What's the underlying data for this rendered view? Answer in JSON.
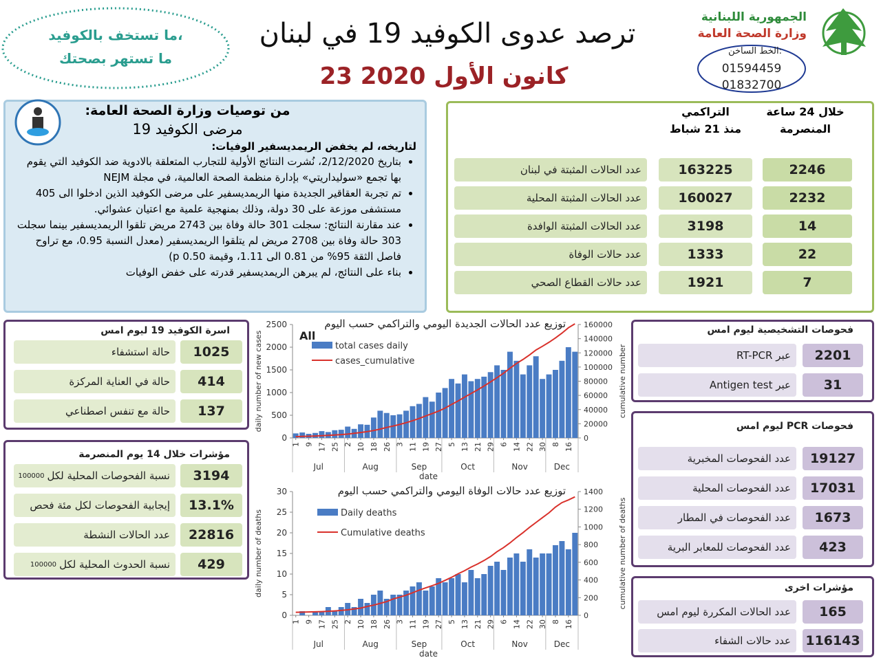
{
  "header": {
    "title": "ترصد عدوى الكوفيد 19 في لبنان",
    "date": "23 كانون الأول 2020",
    "slogan": [
      "ما تستخف بالكوفيد،",
      "ما تستهر بصحتك"
    ],
    "republic": "الجمهورية اللبنانية",
    "ministry": "وزارة الصحة العامة",
    "hotline_label": "الخط الساخن:",
    "hotlines": [
      "01594459",
      "01832700"
    ]
  },
  "recommendations": {
    "title": "من توصيات وزارة الصحة العامة:",
    "subtitle": "مرضى الكوفيد 19",
    "heading": "لتاريخه، لم يخفض الريمديسفير الوفيات:",
    "bullets": [
      "بتاريخ 2/12/2020، نُشرت النتائج الأولية للتجارب المتعلقة بالادوية ضد الكوفيد التي يقوم بها تجمع «سوليداريتي» بإدارة منظمة الصحة العالمية، في مجلة NEJM",
      "تم تجربة العقاقير الجديدة منها الريمديسفير على مرضى الكوفيد الذين ادخلوا الى 405 مستشفى موزعة على 30 دولة، وذلك بمنهجية علمية مع اعتيان عشوائي.",
      "عند مقارنة النتائج: سجلت 301 حالة وفاة بين 2743 مريض تلقوا الريمديسفير بينما سجلت 303 حالة وفاة بين 2708 مريض لم يتلقوا الريمديسفير (معدل النسبة 0.95، مع تراوح فاصل الثقة 95% من 0.81 الى 1.11، وقيمة p 0.50)",
      "بناء على النتائج، لم يبرهن الريمديسفير قدرته على خفض الوفيات"
    ]
  },
  "summary": {
    "col_24h": [
      "خلال 24 ساعة",
      "المنصرمة"
    ],
    "col_cumulative": [
      "التراكمي",
      "منذ 21 شباط"
    ],
    "rows": [
      {
        "label": "عدد الحالات المثبتة في لبنان",
        "cumulative": 163225,
        "last_24h": 2246
      },
      {
        "label": "عدد الحالات المثبتة المحلية",
        "cumulative": 160027,
        "last_24h": 2232
      },
      {
        "label": "عدد الحالات المثبتة الوافدة",
        "cumulative": 3198,
        "last_24h": 14
      },
      {
        "label": "عدد حالات الوفاة",
        "cumulative": 1333,
        "last_24h": 22
      },
      {
        "label": "عدد حالات القطاع الصحي",
        "cumulative": 1921,
        "last_24h": 7
      }
    ]
  },
  "icu_family": {
    "title": "اسرة الكوفيد 19 ليوم امس",
    "rows": [
      {
        "label": "حالة استشفاء",
        "value": 1025
      },
      {
        "label": "حالة في العناية المركزة",
        "value": 414
      },
      {
        "label": "حالة مع تنفس اصطناعي",
        "value": 137
      }
    ]
  },
  "indicators": {
    "title": "مؤشرات خلال 14 يوم المنصرمة",
    "rows": [
      {
        "label": "نسبة الفحوصات  المحلية لكل",
        "suffix": "100000",
        "value": 3194
      },
      {
        "label": "إيجابية الفحوصات لكل مئة فحص",
        "value": "13.1%"
      },
      {
        "label": "عدد الحالات النشطة",
        "value": 22816
      },
      {
        "label": "نسبة الحدوث المحلية لكل",
        "suffix": "100000",
        "value": 429
      }
    ]
  },
  "diagnostic_tests": {
    "title": "فحوصات التشخيصية ليوم امس",
    "rows": [
      {
        "label": "عبر RT-PCR",
        "value": 2201
      },
      {
        "label": "عبر Antigen test",
        "value": 31
      }
    ]
  },
  "pcr_tests": {
    "title": "فحوصات PCR ليوم امس",
    "rows": [
      {
        "label": "عدد الفحوصات المخبرية",
        "value": 19127
      },
      {
        "label": "عدد الفحوصات المحلية",
        "value": 17031
      },
      {
        "label": "عدد الفحوصات في المطار",
        "value": 1673
      },
      {
        "label": "عدد الفحوصات للمعابر البرية",
        "value": 423
      }
    ]
  },
  "other_indicators": {
    "title": "مؤشرات اخرى",
    "rows": [
      {
        "label": "عدد الحالات المكررة ليوم امس",
        "value": 165
      },
      {
        "label": "عدد حالات الشفاء",
        "value": 116143
      }
    ]
  },
  "chart_data": [
    {
      "type": "bar",
      "title": "توزيع عدد الحالات الجديدة اليومي والتراكمي حسب اليوم",
      "annotation": "All",
      "x_label": "date",
      "y_label": "daily number of new cases",
      "y2_label": "cumulative number",
      "categories": [
        "1",
        null,
        "9",
        null,
        "17",
        null,
        "25",
        null,
        "2",
        null,
        "10",
        null,
        "18",
        null,
        "26",
        null,
        "3",
        null,
        "11",
        null,
        "19",
        null,
        "27",
        null,
        "5",
        null,
        "13",
        null,
        "21",
        null,
        "29",
        null,
        "6",
        null,
        "14",
        null,
        "22",
        null,
        "30",
        null,
        "8",
        null,
        "16",
        null
      ],
      "months": [
        "Jul",
        "Aug",
        "Sep",
        "Oct",
        "Nov",
        "Dec"
      ],
      "ylim": [
        0,
        2500
      ],
      "yticks": [
        0,
        500,
        1000,
        1500,
        2000,
        2500
      ],
      "y2lim": [
        0,
        160000
      ],
      "y2ticks": [
        0,
        20000,
        40000,
        60000,
        80000,
        100000,
        120000,
        140000,
        160000
      ],
      "series": [
        {
          "name": "total cases daily",
          "type": "bar",
          "color": "#4a7cc4",
          "values": [
            100,
            120,
            90,
            110,
            150,
            130,
            170,
            180,
            250,
            200,
            300,
            290,
            450,
            600,
            550,
            500,
            520,
            600,
            700,
            750,
            900,
            800,
            1000,
            1100,
            1300,
            1200,
            1400,
            1250,
            1300,
            1350,
            1450,
            1600,
            1500,
            1900,
            1700,
            1400,
            1600,
            1800,
            1300,
            1400,
            1500,
            1700,
            2000,
            1900
          ]
        },
        {
          "name": "cases_cumulative",
          "type": "line",
          "axis": "y2",
          "color": "#d9312b",
          "values": [
            1800,
            2100,
            2400,
            2700,
            3200,
            3700,
            4200,
            4800,
            5400,
            6500,
            7700,
            8900,
            10500,
            12500,
            14800,
            16800,
            19000,
            21500,
            24300,
            27400,
            30900,
            34300,
            37900,
            42100,
            47300,
            52100,
            57400,
            62600,
            67800,
            73200,
            79000,
            85000,
            91200,
            98300,
            105000,
            110600,
            117000,
            124000,
            129300,
            134900,
            141000,
            147800,
            155400,
            161000
          ]
        }
      ]
    },
    {
      "type": "bar",
      "title": "توزيع عدد حالات  الوفاة اليومي والتراكمي حسب اليوم",
      "x_label": "date",
      "y_label": "daily number of deaths",
      "y2_label": "cumulative number of deaths",
      "categories": [
        "1",
        null,
        "9",
        null,
        "17",
        null,
        "25",
        null,
        "2",
        null,
        "10",
        null,
        "18",
        null,
        "26",
        null,
        "3",
        null,
        "11",
        null,
        "19",
        null,
        "27",
        null,
        "5",
        null,
        "13",
        null,
        "21",
        null,
        "29",
        null,
        "6",
        null,
        "14",
        null,
        "22",
        null,
        "30",
        null,
        "8",
        null,
        "16",
        null
      ],
      "months": [
        "Jul",
        "Aug",
        "Sep",
        "Oct",
        "Nov",
        "Dec"
      ],
      "ylim": [
        0,
        30
      ],
      "yticks": [
        0,
        5,
        10,
        15,
        20,
        25,
        30
      ],
      "y2lim": [
        0,
        1400
      ],
      "y2ticks": [
        0,
        200,
        400,
        600,
        800,
        1000,
        1200,
        1400
      ],
      "series": [
        {
          "name": "Daily deaths",
          "type": "bar",
          "color": "#4a7cc4",
          "values": [
            0,
            1,
            0,
            1,
            1,
            2,
            1,
            2,
            3,
            2,
            4,
            3,
            5,
            6,
            4,
            5,
            5,
            6,
            7,
            8,
            6,
            7,
            9,
            8,
            9,
            10,
            8,
            11,
            9,
            10,
            12,
            13,
            11,
            14,
            15,
            13,
            16,
            14,
            15,
            15,
            17,
            18,
            16,
            20
          ]
        },
        {
          "name": "Cumulative deaths",
          "type": "line",
          "axis": "y2",
          "color": "#d9312b",
          "values": [
            34,
            36,
            38,
            40,
            42,
            46,
            50,
            55,
            62,
            72,
            82,
            100,
            115,
            135,
            155,
            185,
            205,
            228,
            255,
            285,
            310,
            335,
            362,
            395,
            430,
            470,
            505,
            545,
            580,
            620,
            665,
            720,
            765,
            820,
            880,
            935,
            995,
            1050,
            1105,
            1160,
            1225,
            1275,
            1305,
            1340
          ]
        }
      ]
    }
  ]
}
